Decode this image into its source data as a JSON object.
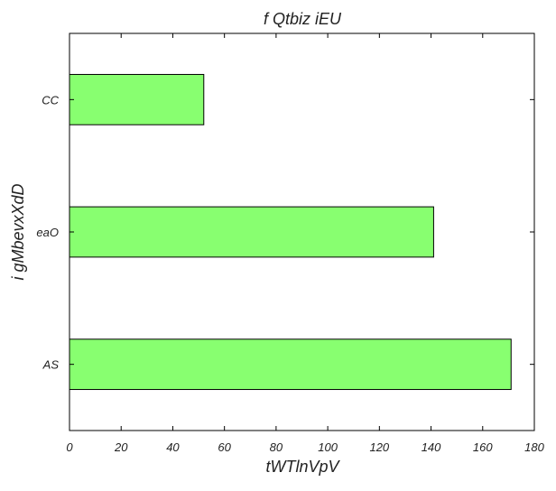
{
  "chart_data": {
    "type": "bar",
    "orientation": "horizontal",
    "title": "f Qtbiz iEU",
    "xlabel": "tWTlnVpV",
    "ylabel": "i gMbevxXdD",
    "categories": [
      "AS",
      "eaO",
      "CC"
    ],
    "values": [
      171,
      141,
      52
    ],
    "xlim": [
      0,
      180
    ],
    "xticks": [
      0,
      20,
      40,
      60,
      80,
      100,
      120,
      140,
      160,
      180
    ],
    "grid": false,
    "legend": "none",
    "colors": {
      "bar_fill": "#88ff70",
      "bar_edge": "#000000",
      "axis": "#000000",
      "text": "#222222"
    }
  }
}
